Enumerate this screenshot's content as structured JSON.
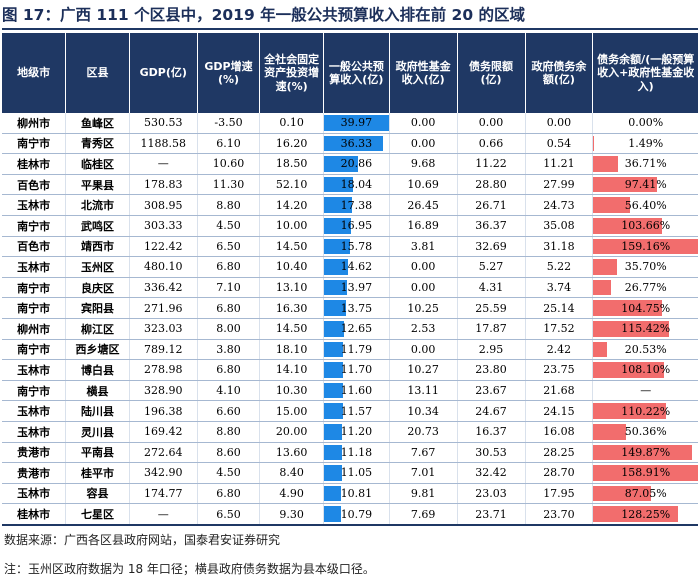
{
  "title": "图 17：广西 111 个区县中，2019 年一般公共预算收入排在前 20 的区域",
  "colors": {
    "header_bg": "#1f3864",
    "revenue_bar": "#1e88e5",
    "ratio_bar": "#f26d6d"
  },
  "table": {
    "headers": [
      "地级市",
      "区县",
      "GDP(亿)",
      "GDP增速(%)",
      "全社会固定资产投资增速(%)",
      "一般公共预算收入(亿)",
      "政府性基金收入(亿)",
      "债务限额(亿)",
      "政府债务余额(亿)",
      "债务余额/(一般预算收入+政府性基金收入)"
    ],
    "revenue_max": 39.97,
    "ratio_max": 159.16,
    "rows": [
      {
        "city": "柳州市",
        "county": "鱼峰区",
        "gdp": "530.53",
        "gdp_growth": "-3.50",
        "invest_growth": "0.10",
        "revenue": "39.97",
        "revenue_value": 39.97,
        "fund": "0.00",
        "debt_limit": "0.00",
        "debt_balance": "0.00",
        "ratio": "0.00%",
        "ratio_value": 0
      },
      {
        "city": "南宁市",
        "county": "青秀区",
        "gdp": "1188.58",
        "gdp_growth": "6.10",
        "invest_growth": "16.20",
        "revenue": "36.33",
        "revenue_value": 36.33,
        "fund": "0.00",
        "debt_limit": "0.66",
        "debt_balance": "0.54",
        "ratio": "1.49%",
        "ratio_value": 1.49
      },
      {
        "city": "桂林市",
        "county": "临桂区",
        "gdp": "—",
        "gdp_growth": "10.60",
        "invest_growth": "18.50",
        "revenue": "20.86",
        "revenue_value": 20.86,
        "fund": "9.68",
        "debt_limit": "11.22",
        "debt_balance": "11.21",
        "ratio": "36.71%",
        "ratio_value": 36.71
      },
      {
        "city": "百色市",
        "county": "平果县",
        "gdp": "178.83",
        "gdp_growth": "11.30",
        "invest_growth": "52.10",
        "revenue": "18.04",
        "revenue_value": 18.04,
        "fund": "10.69",
        "debt_limit": "28.80",
        "debt_balance": "27.99",
        "ratio": "97.41%",
        "ratio_value": 97.41
      },
      {
        "city": "玉林市",
        "county": "北流市",
        "gdp": "308.95",
        "gdp_growth": "8.80",
        "invest_growth": "14.20",
        "revenue": "17.38",
        "revenue_value": 17.38,
        "fund": "26.45",
        "debt_limit": "26.71",
        "debt_balance": "24.73",
        "ratio": "56.40%",
        "ratio_value": 56.4
      },
      {
        "city": "南宁市",
        "county": "武鸣区",
        "gdp": "303.33",
        "gdp_growth": "4.50",
        "invest_growth": "10.00",
        "revenue": "16.95",
        "revenue_value": 16.95,
        "fund": "16.89",
        "debt_limit": "36.37",
        "debt_balance": "35.08",
        "ratio": "103.66%",
        "ratio_value": 103.66
      },
      {
        "city": "百色市",
        "county": "靖西市",
        "gdp": "122.42",
        "gdp_growth": "6.50",
        "invest_growth": "14.50",
        "revenue": "15.78",
        "revenue_value": 15.78,
        "fund": "3.81",
        "debt_limit": "32.69",
        "debt_balance": "31.18",
        "ratio": "159.16%",
        "ratio_value": 159.16
      },
      {
        "city": "玉林市",
        "county": "玉州区",
        "gdp": "480.10",
        "gdp_growth": "6.80",
        "invest_growth": "10.40",
        "revenue": "14.62",
        "revenue_value": 14.62,
        "fund": "0.00",
        "debt_limit": "5.27",
        "debt_balance": "5.22",
        "ratio": "35.70%",
        "ratio_value": 35.7
      },
      {
        "city": "南宁市",
        "county": "良庆区",
        "gdp": "336.42",
        "gdp_growth": "7.10",
        "invest_growth": "13.10",
        "revenue": "13.97",
        "revenue_value": 13.97,
        "fund": "0.00",
        "debt_limit": "4.31",
        "debt_balance": "3.74",
        "ratio": "26.77%",
        "ratio_value": 26.77
      },
      {
        "city": "南宁市",
        "county": "宾阳县",
        "gdp": "271.96",
        "gdp_growth": "6.80",
        "invest_growth": "16.30",
        "revenue": "13.75",
        "revenue_value": 13.75,
        "fund": "10.25",
        "debt_limit": "25.59",
        "debt_balance": "25.14",
        "ratio": "104.75%",
        "ratio_value": 104.75
      },
      {
        "city": "柳州市",
        "county": "柳江区",
        "gdp": "323.03",
        "gdp_growth": "8.00",
        "invest_growth": "14.50",
        "revenue": "12.65",
        "revenue_value": 12.65,
        "fund": "2.53",
        "debt_limit": "17.87",
        "debt_balance": "17.52",
        "ratio": "115.42%",
        "ratio_value": 115.42
      },
      {
        "city": "南宁市",
        "county": "西乡塘区",
        "gdp": "789.12",
        "gdp_growth": "3.80",
        "invest_growth": "18.10",
        "revenue": "11.79",
        "revenue_value": 11.79,
        "fund": "0.00",
        "debt_limit": "2.95",
        "debt_balance": "2.42",
        "ratio": "20.53%",
        "ratio_value": 20.53
      },
      {
        "city": "玉林市",
        "county": "博白县",
        "gdp": "278.98",
        "gdp_growth": "6.80",
        "invest_growth": "14.10",
        "revenue": "11.70",
        "revenue_value": 11.7,
        "fund": "10.27",
        "debt_limit": "23.80",
        "debt_balance": "23.75",
        "ratio": "108.10%",
        "ratio_value": 108.1
      },
      {
        "city": "南宁市",
        "county": "横县",
        "gdp": "328.90",
        "gdp_growth": "4.10",
        "invest_growth": "10.30",
        "revenue": "11.60",
        "revenue_value": 11.6,
        "fund": "13.11",
        "debt_limit": "23.67",
        "debt_balance": "21.68",
        "ratio": "—",
        "ratio_value": 0
      },
      {
        "city": "玉林市",
        "county": "陆川县",
        "gdp": "196.38",
        "gdp_growth": "6.60",
        "invest_growth": "15.00",
        "revenue": "11.57",
        "revenue_value": 11.57,
        "fund": "10.34",
        "debt_limit": "24.67",
        "debt_balance": "24.15",
        "ratio": "110.22%",
        "ratio_value": 110.22
      },
      {
        "city": "玉林市",
        "county": "灵川县",
        "gdp": "169.42",
        "gdp_growth": "8.80",
        "invest_growth": "20.00",
        "revenue": "11.20",
        "revenue_value": 11.2,
        "fund": "20.73",
        "debt_limit": "16.37",
        "debt_balance": "16.08",
        "ratio": "50.36%",
        "ratio_value": 50.36
      },
      {
        "city": "贵港市",
        "county": "平南县",
        "gdp": "272.64",
        "gdp_growth": "8.60",
        "invest_growth": "13.60",
        "revenue": "11.18",
        "revenue_value": 11.18,
        "fund": "7.67",
        "debt_limit": "30.53",
        "debt_balance": "28.25",
        "ratio": "149.87%",
        "ratio_value": 149.87
      },
      {
        "city": "贵港市",
        "county": "桂平市",
        "gdp": "342.90",
        "gdp_growth": "4.50",
        "invest_growth": "8.40",
        "revenue": "11.05",
        "revenue_value": 11.05,
        "fund": "7.01",
        "debt_limit": "32.42",
        "debt_balance": "28.70",
        "ratio": "158.91%",
        "ratio_value": 158.91
      },
      {
        "city": "玉林市",
        "county": "容县",
        "gdp": "174.77",
        "gdp_growth": "6.80",
        "invest_growth": "4.90",
        "revenue": "10.81",
        "revenue_value": 10.81,
        "fund": "9.81",
        "debt_limit": "23.03",
        "debt_balance": "17.95",
        "ratio": "87.05%",
        "ratio_value": 87.05
      },
      {
        "city": "桂林市",
        "county": "七星区",
        "gdp": "—",
        "gdp_growth": "6.50",
        "invest_growth": "9.30",
        "revenue": "10.79",
        "revenue_value": 10.79,
        "fund": "7.69",
        "debt_limit": "23.71",
        "debt_balance": "23.70",
        "ratio": "128.25%",
        "ratio_value": 128.25
      }
    ]
  },
  "source": "数据来源：广西各区县政府网站，国泰君安证券研究",
  "note": "注：玉州区政府数据为 18 年口径；横县政府债务数据为县本级口径。"
}
